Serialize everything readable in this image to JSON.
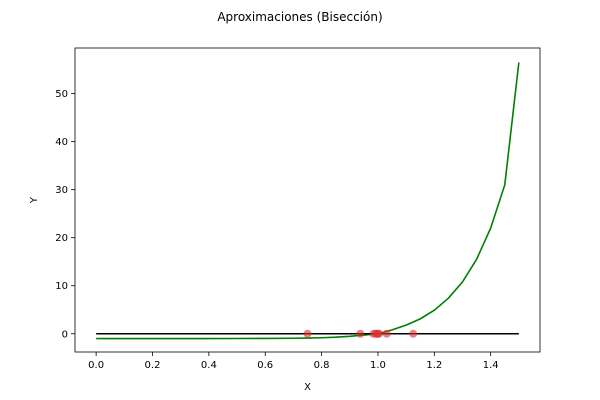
{
  "chart_data": {
    "type": "line",
    "title": "Aproximaciones (Bisección)",
    "xlabel": "X",
    "ylabel": "Y",
    "xlim": [
      -0.075,
      1.575
    ],
    "ylim": [
      -3.8,
      59.5
    ],
    "x_ticks": [
      0.0,
      0.2,
      0.4,
      0.6,
      0.8,
      1.0,
      1.2,
      1.4
    ],
    "x_tick_labels": [
      "0.0",
      "0.2",
      "0.4",
      "0.6",
      "0.8",
      "1.0",
      "1.2",
      "1.4"
    ],
    "y_ticks": [
      0,
      10,
      20,
      30,
      40,
      50
    ],
    "y_tick_labels": [
      "0",
      "10",
      "20",
      "30",
      "40",
      "50"
    ],
    "grid": false,
    "series": [
      {
        "kind": "line",
        "color": "#008000",
        "x": [
          0.0,
          0.1,
          0.2,
          0.3,
          0.4,
          0.5,
          0.6,
          0.7,
          0.75,
          0.8,
          0.85,
          0.9,
          0.95,
          1.0,
          1.05,
          1.1,
          1.15,
          1.2,
          1.25,
          1.3,
          1.35,
          1.4,
          1.45,
          1.5
        ],
        "y": [
          -1.0,
          -1.0,
          -1.0,
          -1.0,
          -1.0,
          -0.99,
          -0.98,
          -0.94,
          -0.9,
          -0.83,
          -0.72,
          -0.53,
          -0.27,
          0.0,
          0.8,
          1.8,
          3.1,
          4.9,
          7.4,
          10.8,
          15.5,
          22.0,
          31.0,
          56.5
        ]
      },
      {
        "kind": "line",
        "color": "#000000",
        "x": [
          0.0,
          1.5
        ],
        "y": [
          0.0,
          0.0
        ]
      },
      {
        "kind": "scatter",
        "color": "#e03030",
        "x": [
          0.75,
          0.9375,
          0.984375,
          0.9921875,
          0.99609375,
          1.0,
          1.00390625,
          1.03125,
          1.125
        ],
        "y": [
          0,
          0,
          0,
          0,
          0,
          0,
          0,
          0,
          0
        ]
      }
    ]
  }
}
